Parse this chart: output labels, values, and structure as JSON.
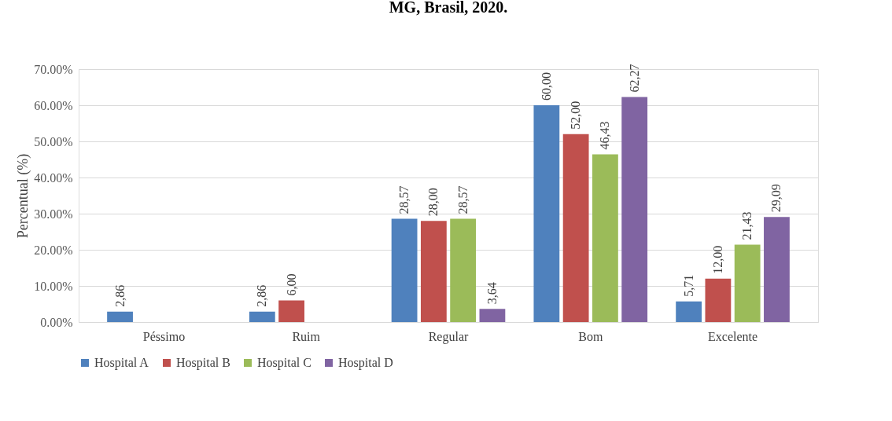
{
  "chart_data": {
    "type": "bar",
    "title": "MG, Brasil, 2020.",
    "ylabel": "Percentual (%)",
    "categories": [
      "Péssimo",
      "Ruim",
      "Regular",
      "Bom",
      "Excelente"
    ],
    "series": [
      {
        "name": "Hospital A",
        "color": "#4f81bd",
        "values": [
          2.86,
          2.86,
          28.57,
          60.0,
          5.71
        ],
        "value_labels": [
          "2,86",
          "2,86",
          "28,57",
          "60,00",
          "5,71"
        ]
      },
      {
        "name": "Hospital B",
        "color": "#c0504d",
        "values": [
          null,
          6.0,
          28.0,
          52.0,
          12.0
        ],
        "value_labels": [
          null,
          "6,00",
          "28,00",
          "52,00",
          "12,00"
        ]
      },
      {
        "name": "Hospital C",
        "color": "#9bbb59",
        "values": [
          null,
          null,
          28.57,
          46.43,
          21.43
        ],
        "value_labels": [
          null,
          null,
          "28,57",
          "46,43",
          "21,43"
        ]
      },
      {
        "name": "Hospital D",
        "color": "#8064a2",
        "values": [
          null,
          null,
          3.64,
          62.27,
          29.09
        ],
        "value_labels": [
          null,
          null,
          "3,64",
          "62,27",
          "29,09"
        ]
      }
    ],
    "ylim": [
      0,
      70
    ],
    "yticks": [
      {
        "value": 0,
        "label": "0.00%"
      },
      {
        "value": 10,
        "label": "10.00%"
      },
      {
        "value": 20,
        "label": "20.00%"
      },
      {
        "value": 30,
        "label": "30.00%"
      },
      {
        "value": 40,
        "label": "40.00%"
      },
      {
        "value": 50,
        "label": "50.00%"
      },
      {
        "value": 60,
        "label": "60.00%"
      },
      {
        "value": 70,
        "label": "70.00%"
      }
    ],
    "grid": "y",
    "legend": "bottom"
  }
}
